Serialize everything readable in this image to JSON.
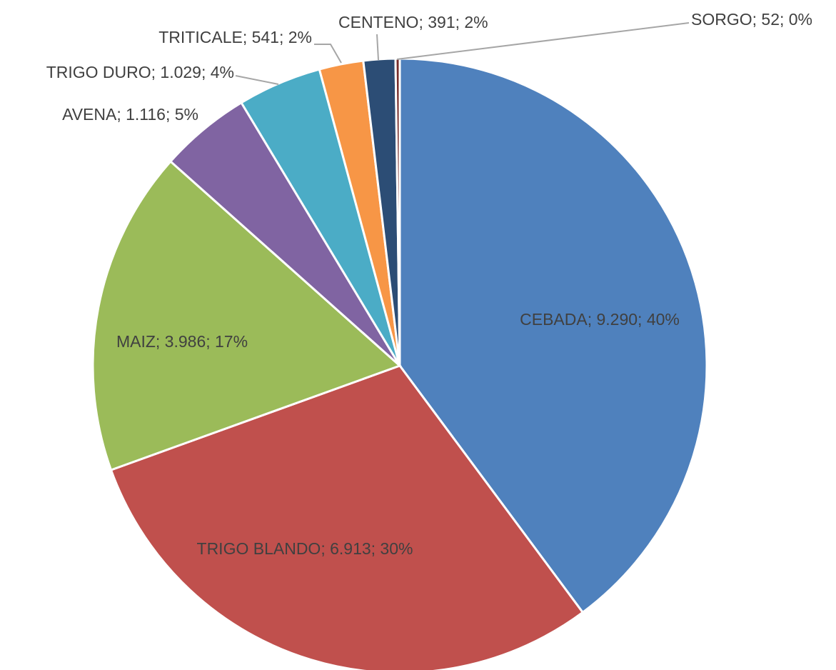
{
  "chart_data": {
    "type": "pie",
    "labels": [
      "CEBADA; 9.290; 40%",
      "TRIGO BLANDO; 6.913; 30%",
      "MAIZ; 3.986; 17%",
      "AVENA; 1.116; 5%",
      "TRIGO DURO; 1.029; 4%",
      "TRITICALE; 541; 2%",
      "CENTENO; 391; 2%",
      "SORGO; 52; 0%"
    ],
    "values": [
      9290,
      6913,
      3986,
      1116,
      1029,
      541,
      391,
      52
    ],
    "colors": [
      "#4f81bd",
      "#c0504d",
      "#9bbb59",
      "#8064a2",
      "#4bacc6",
      "#f79646",
      "#2c4d75",
      "#772c2a"
    ]
  }
}
